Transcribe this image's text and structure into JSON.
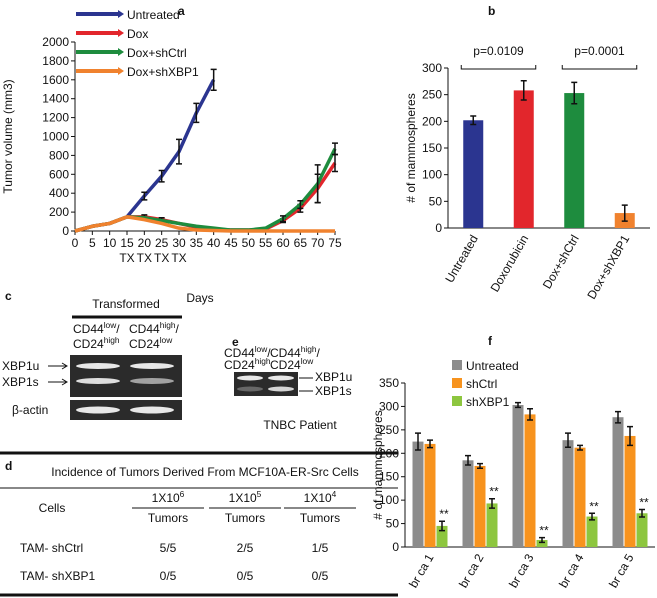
{
  "panel_labels": [
    "a",
    "b",
    "c",
    "d",
    "e",
    "f"
  ],
  "chart_data": [
    {
      "type": "line",
      "xlabel": "Days",
      "ylabel": "Tumor volume (mm3)",
      "x": [
        0,
        5,
        10,
        15,
        20,
        25,
        30,
        35,
        40,
        45,
        50,
        55,
        60,
        65,
        70,
        75
      ],
      "xlim": [
        0,
        75
      ],
      "xticks": [
        0,
        5,
        10,
        15,
        20,
        25,
        30,
        35,
        40,
        45,
        50,
        55,
        60,
        65,
        70,
        75
      ],
      "ylim": [
        0,
        2000
      ],
      "yticks": [
        0,
        200,
        400,
        600,
        800,
        1000,
        1200,
        1400,
        1600,
        1800,
        2000
      ],
      "legend": "upper left",
      "series": [
        {
          "name": "Untreated",
          "color": "#2b3590",
          "values": [
            0,
            50,
            80,
            150,
            370,
            580,
            840,
            1250,
            1600,
            null,
            null,
            null,
            null,
            null,
            null,
            null
          ],
          "errors": [
            null,
            null,
            null,
            null,
            40,
            60,
            130,
            100,
            110,
            null,
            null,
            null,
            null,
            null,
            null,
            null
          ]
        },
        {
          "name": "Dox",
          "color": "#e2262c",
          "values": [
            0,
            50,
            80,
            150,
            150,
            120,
            80,
            40,
            20,
            10,
            10,
            20,
            110,
            240,
            450,
            720
          ],
          "errors": [
            null,
            null,
            null,
            null,
            20,
            20,
            null,
            null,
            null,
            null,
            null,
            null,
            20,
            40,
            150,
            90
          ]
        },
        {
          "name": "Dox+shCtrl",
          "color": "#1e8c3e",
          "values": [
            0,
            50,
            80,
            150,
            140,
            110,
            80,
            50,
            30,
            10,
            10,
            30,
            130,
            280,
            500,
            870
          ],
          "errors": [
            null,
            null,
            null,
            null,
            null,
            null,
            null,
            null,
            null,
            null,
            null,
            null,
            30,
            40,
            200,
            60
          ]
        },
        {
          "name": "Dox+shXBP1",
          "color": "#f0822e",
          "values": [
            0,
            50,
            80,
            150,
            120,
            80,
            30,
            10,
            5,
            0,
            0,
            0,
            0,
            0,
            0,
            0
          ],
          "errors": [
            null,
            null,
            null,
            null,
            null,
            null,
            null,
            null,
            null,
            null,
            null,
            null,
            null,
            null,
            null,
            null
          ]
        }
      ],
      "annotations": [
        {
          "text": "TX",
          "x": 15
        },
        {
          "text": "TX",
          "x": 20
        },
        {
          "text": "TX",
          "x": 25
        },
        {
          "text": "TX",
          "x": 30
        }
      ]
    },
    {
      "type": "bar",
      "ylabel": "# of mammospheres",
      "categories": [
        "Untreated",
        "Doxorubicin",
        "Dox+shCtrl",
        "Dox+shXBP1"
      ],
      "values": [
        202,
        258,
        253,
        28
      ],
      "errors": [
        8,
        18,
        20,
        15
      ],
      "colors": [
        "#2b3590",
        "#e2262c",
        "#1e8c3e",
        "#f0822e"
      ],
      "ylim": [
        0,
        300
      ],
      "yticks": [
        0,
        50,
        100,
        150,
        200,
        250,
        300
      ],
      "annotations": [
        {
          "text": "p=0.0109",
          "from": 0,
          "to": 1
        },
        {
          "text": "p=0.0001",
          "from": 2,
          "to": 3
        }
      ]
    },
    {
      "type": "grouped_bar",
      "ylabel": "# of mammospheres",
      "categories": [
        "br ca 1",
        "br ca 2",
        "br ca 3",
        "br ca 4",
        "br ca 5"
      ],
      "ylim": [
        0,
        350
      ],
      "yticks": [
        0,
        50,
        100,
        150,
        200,
        250,
        300,
        350
      ],
      "legend": "upper left",
      "series": [
        {
          "name": "Untreated",
          "color": "#8c8c8c",
          "values": [
            225,
            185,
            303,
            228,
            277
          ],
          "errors": [
            18,
            10,
            5,
            15,
            12
          ]
        },
        {
          "name": "shCtrl",
          "color": "#f7931e",
          "values": [
            220,
            173,
            283,
            212,
            237
          ],
          "errors": [
            8,
            5,
            12,
            5,
            20
          ]
        },
        {
          "name": "shXBP1",
          "color": "#8dc63f",
          "values": [
            45,
            93,
            15,
            65,
            72
          ],
          "errors": [
            10,
            10,
            5,
            7,
            8
          ],
          "significance": [
            "**",
            "**",
            "**",
            "**",
            "**"
          ]
        }
      ]
    }
  ],
  "gel_c": {
    "title": "Transformed",
    "lanes": [
      {
        "marker1": "CD44",
        "sup1": "low",
        "sep": "/",
        "marker2": "CD24",
        "sup2": "high"
      },
      {
        "marker1": "CD44",
        "sup1": "high",
        "sep": "/",
        "marker2": "CD24",
        "sup2": "low"
      }
    ],
    "bands": [
      "XBP1u",
      "XBP1s",
      "β-actin"
    ]
  },
  "gel_e": {
    "lanes": [
      {
        "marker1": "CD44",
        "sup1": "low",
        "sep": "/",
        "marker2": "CD24",
        "sup2": "high"
      },
      {
        "marker1": "CD44",
        "sup1": "high",
        "sep": "/",
        "marker2": "CD24",
        "sup2": "low"
      }
    ],
    "bands": [
      "XBP1u",
      "XBP1s"
    ],
    "caption": "TNBC Patient"
  },
  "table": {
    "title": "Incidence of Tumors Derived From MCF10A-ER-Src Cells",
    "row_header": "Cells",
    "columns": [
      {
        "base": "1X10",
        "exp": "6",
        "unit": "Tumors"
      },
      {
        "base": "1X10",
        "exp": "5",
        "unit": "Tumors"
      },
      {
        "base": "1X10",
        "exp": "4",
        "unit": "Tumors"
      }
    ],
    "rows": [
      [
        "TAM- shCtrl",
        "5/5",
        "2/5",
        "1/5"
      ],
      [
        "TAM- shXBP1",
        "0/5",
        "0/5",
        "0/5"
      ]
    ]
  }
}
